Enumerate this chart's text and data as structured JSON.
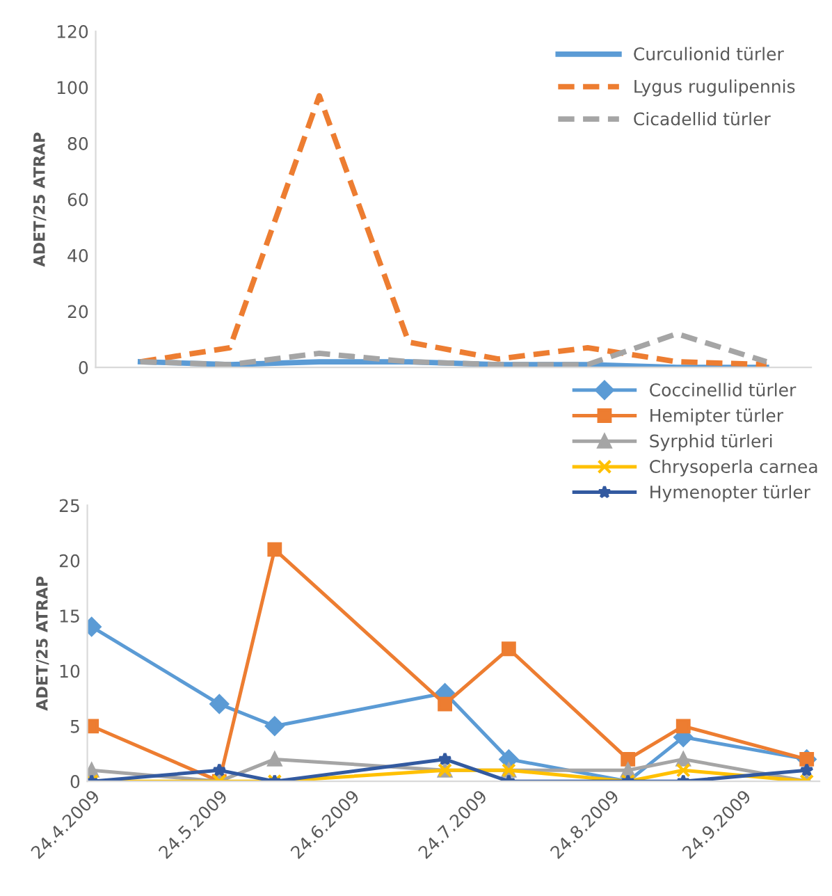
{
  "chart_data": [
    {
      "type": "line",
      "ylabel": "ADET/25 ATRAP",
      "categories": [
        null,
        null,
        null,
        null,
        null,
        null,
        null,
        null
      ],
      "ylim": [
        0,
        120
      ],
      "yticks": [
        0,
        20,
        40,
        60,
        80,
        100,
        120
      ],
      "grid": false,
      "legend": "top right",
      "tick_labels": "y",
      "marker": "none",
      "series": [
        {
          "name": "Curculionid türler",
          "color": "#5b9bd5",
          "line_style": "solid",
          "values": [
            2,
            1,
            2,
            2,
            1,
            1,
            0,
            0
          ]
        },
        {
          "name": "Lygus rugulipennis",
          "color": "#ed7d31",
          "line_style": "dashed",
          "values": [
            2,
            7,
            97,
            9,
            3,
            7,
            2,
            1
          ]
        },
        {
          "name": "Cicadellid türler",
          "color": "#a5a5a5",
          "line_style": "dashed",
          "values": [
            2,
            1,
            5,
            2,
            1,
            1,
            12,
            2
          ]
        }
      ]
    },
    {
      "type": "line",
      "ylabel": "ADET/25 ATRAP",
      "x": [
        "2009-04-24",
        "2009-05-24",
        "2009-06-06",
        "2009-07-16",
        "2009-07-31",
        "2009-08-28",
        "2009-09-10",
        "2009-10-09"
      ],
      "xlim": [
        "2009-04-23",
        "2009-10-12"
      ],
      "xticks": [
        {
          "value": "2009-04-24",
          "label": "24.4.2009"
        },
        {
          "value": "2009-05-24",
          "label": "24.5.2009"
        },
        {
          "value": "2009-06-24",
          "label": "24.6.2009"
        },
        {
          "value": "2009-07-24",
          "label": "24.7.2009"
        },
        {
          "value": "2009-08-24",
          "label": "24.8.2009"
        },
        {
          "value": "2009-09-24",
          "label": "24.9.2009"
        }
      ],
      "ylim": [
        0,
        25
      ],
      "yticks": [
        0,
        5,
        10,
        15,
        20,
        25
      ],
      "grid": false,
      "legend": "top right",
      "line_style": "solid",
      "series": [
        {
          "name": "Coccinellid türler",
          "color": "#5b9bd5",
          "marker": "diamond",
          "values": [
            14,
            7,
            5,
            8,
            2,
            0,
            4,
            2
          ]
        },
        {
          "name": "Hemipter türler",
          "color": "#ed7d31",
          "marker": "square",
          "values": [
            5,
            0,
            21,
            7,
            12,
            2,
            5,
            2
          ]
        },
        {
          "name": "Syrphid türleri",
          "color": "#a5a5a5",
          "marker": "triangle",
          "values": [
            1,
            0,
            2,
            1,
            1,
            1,
            2,
            0
          ]
        },
        {
          "name": "Chrysoperla carnea",
          "color": "#ffc000",
          "marker": "cross",
          "values": [
            0,
            0,
            0,
            1,
            1,
            0,
            1,
            0
          ]
        },
        {
          "name": "Hymenopter türler",
          "color": "#335aa0",
          "marker": "star",
          "values": [
            0,
            1,
            0,
            2,
            0,
            0,
            0,
            1
          ]
        }
      ]
    }
  ]
}
